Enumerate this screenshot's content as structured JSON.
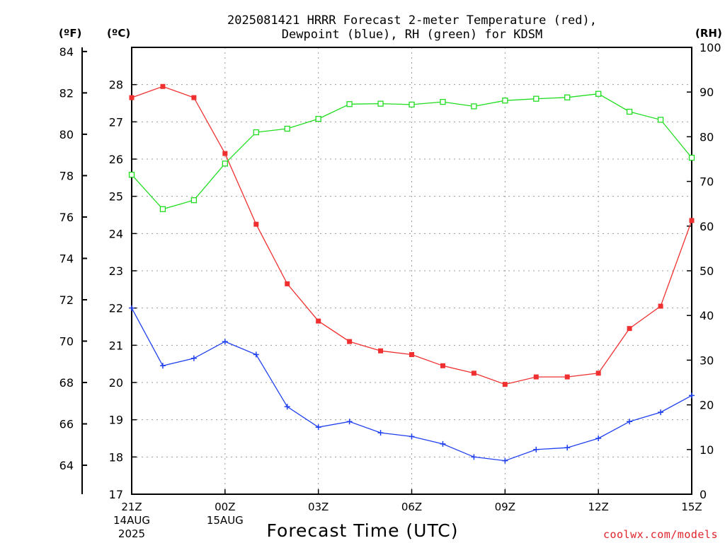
{
  "chart_data": {
    "type": "line",
    "title_line1": "2025081421 HRRR Forecast 2-meter Temperature (red),",
    "title_line2": "Dewpoint (blue), RH (green) for KDSM",
    "xlabel": "Forecast Time (UTC)",
    "credit": "coolwx.com/models",
    "credit_color": "#e0232b",
    "units": {
      "fahrenheit": "(ºF)",
      "celsius": "(ºC)",
      "rh": "(RH)"
    },
    "x_ticks": [
      {
        "hour": 0,
        "label": "21Z",
        "sub1": "14AUG",
        "sub2": "2025"
      },
      {
        "hour": 3,
        "label": "00Z",
        "sub1": "15AUG",
        "sub2": ""
      },
      {
        "hour": 6,
        "label": "03Z",
        "sub1": "",
        "sub2": ""
      },
      {
        "hour": 9,
        "label": "06Z",
        "sub1": "",
        "sub2": ""
      },
      {
        "hour": 12,
        "label": "09Z",
        "sub1": "",
        "sub2": ""
      },
      {
        "hour": 15,
        "label": "12Z",
        "sub1": "",
        "sub2": ""
      },
      {
        "hour": 18,
        "label": "15Z",
        "sub1": "",
        "sub2": ""
      }
    ],
    "x_range": [
      0,
      18
    ],
    "celsius_axis": {
      "min": 17,
      "max": 29,
      "ticks": [
        17,
        18,
        19,
        20,
        21,
        22,
        23,
        24,
        25,
        26,
        27,
        28
      ]
    },
    "fahrenheit_axis": {
      "ticks": [
        64,
        66,
        68,
        70,
        72,
        74,
        76,
        78,
        80,
        82,
        84
      ]
    },
    "rh_axis": {
      "min": 0,
      "max": 100,
      "ticks": [
        0,
        10,
        20,
        30,
        40,
        50,
        60,
        70,
        80,
        90,
        100
      ]
    },
    "grid": true,
    "valid_times": [
      "21Z",
      "22Z",
      "23Z",
      "00Z",
      "01Z",
      "02Z",
      "03Z",
      "04Z",
      "05Z",
      "06Z",
      "07Z",
      "08Z",
      "09Z",
      "10Z",
      "11Z",
      "12Z",
      "13Z",
      "14Z",
      "15Z"
    ],
    "series": [
      {
        "name": "Temperature",
        "axis": "celsius",
        "color": "#f03030",
        "marker": "filled-square",
        "values": [
          27.65,
          27.95,
          27.65,
          26.15,
          24.25,
          22.65,
          21.65,
          21.1,
          20.85,
          20.75,
          20.45,
          20.25,
          19.95,
          20.15,
          20.15,
          20.25,
          21.45,
          22.05,
          24.35
        ]
      },
      {
        "name": "Dewpoint",
        "axis": "celsius",
        "color": "#2040f0",
        "marker": "plus",
        "values": [
          22.0,
          20.45,
          20.65,
          21.1,
          20.75,
          19.35,
          18.8,
          18.95,
          18.65,
          18.55,
          18.35,
          18.0,
          17.9,
          18.2,
          18.25,
          18.5,
          18.95,
          19.2,
          19.65
        ]
      },
      {
        "name": "RH",
        "axis": "rh",
        "color": "#20dd20",
        "marker": "open-square",
        "values": [
          71.5,
          63.8,
          65.8,
          74.0,
          81.0,
          81.8,
          84.0,
          87.3,
          87.4,
          87.2,
          87.8,
          86.8,
          88.1,
          88.5,
          88.8,
          89.6,
          85.6,
          83.8,
          75.3
        ]
      }
    ]
  }
}
